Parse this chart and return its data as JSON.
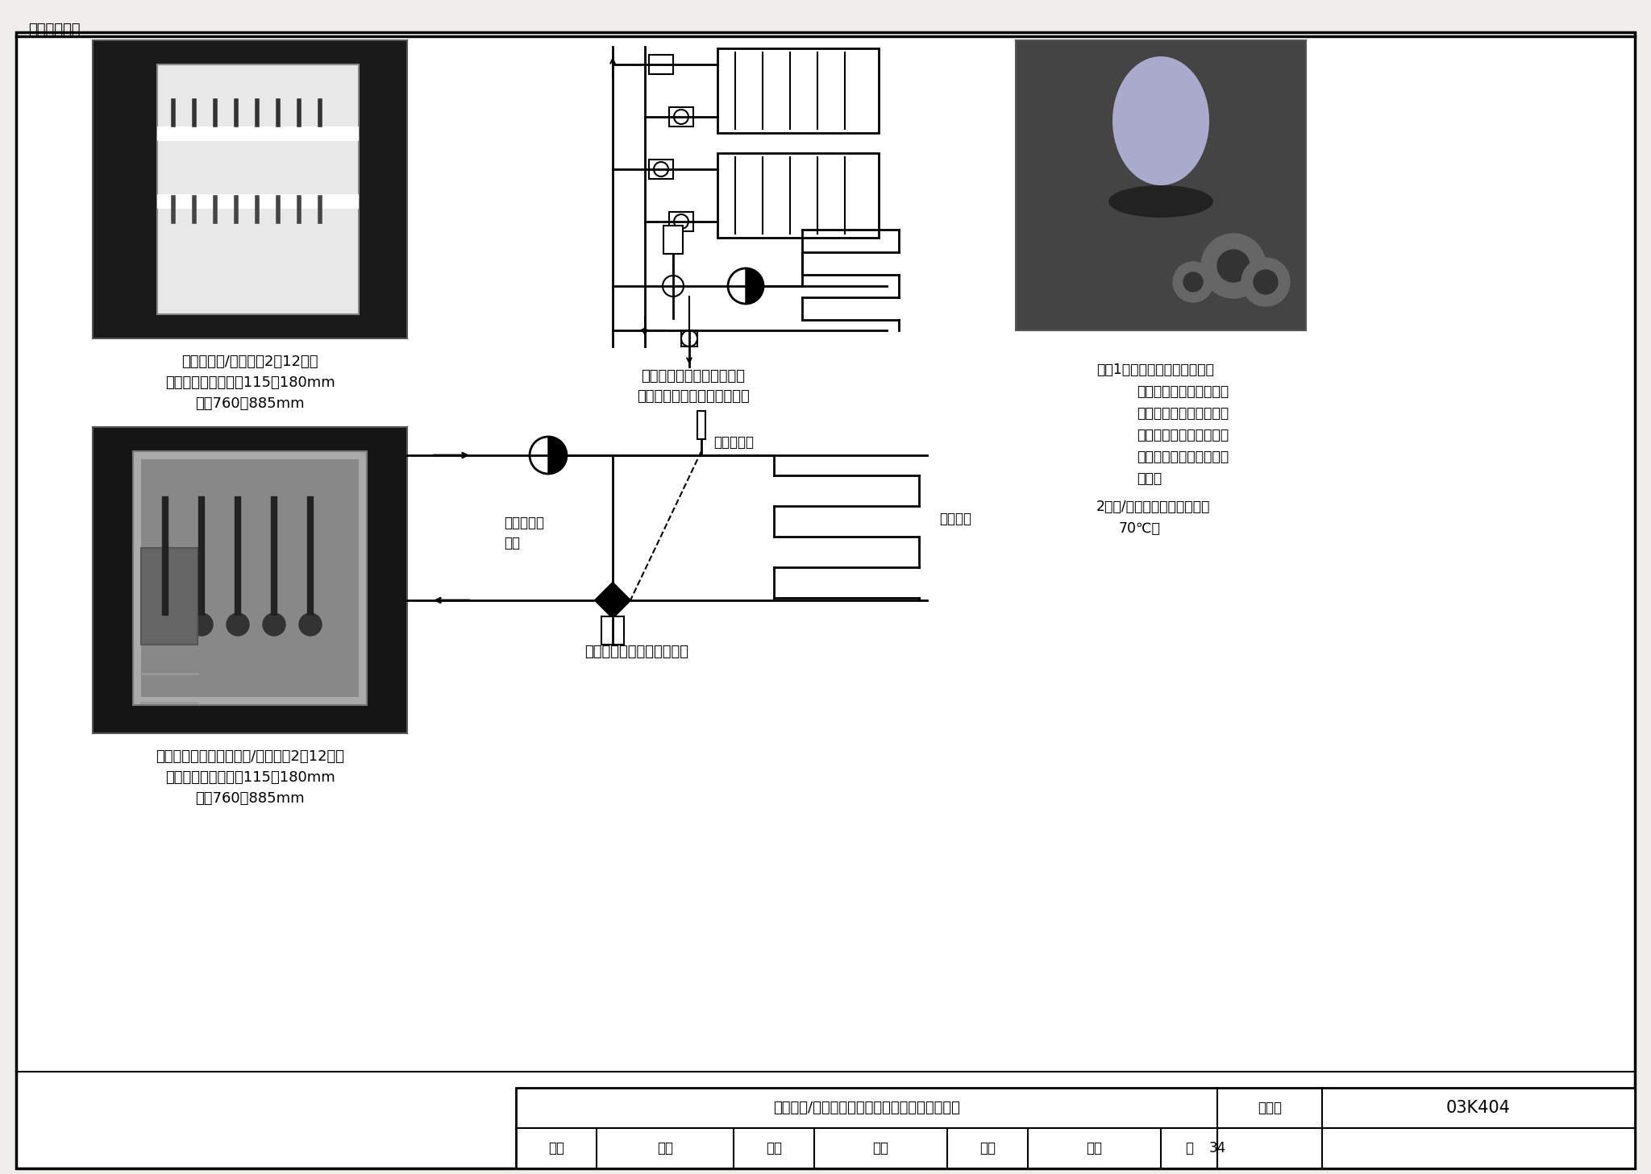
{
  "bg": "#f0eeea",
  "header_text": "相关技术资料",
  "caption1": [
    "全不锈钢分/集水器，2～12环路",
    "镀锌钢板箱壳，厚度115～180mm",
    "高度760～885mm"
  ],
  "caption2": [
    "带混水装置的全不锈钢分/集水器，2～12环路",
    "镀锌钢板箱壳，厚度115～180mm",
    "高度760～885mm"
  ],
  "diag1_title1": "二通阀控制供水温度原理图",
  "diag1_title2": "（二通阀和控制元件见右图）",
  "diag2_title": "三通阀控制供水温度原理图",
  "label_temp": "温度控制器",
  "label_valve_line1": "三通分流调",
  "label_valve_line2": "节阀",
  "label_floor": "地板采暖",
  "note1": "注：1．本页按欧文托普门系统",
  "note2": "（北京）有限公司提供资",
  "note3": "料编制。其他公司类似产",
  "note4": "品，参数、外形、尺寸等",
  "note5": "可能与本页不符，应注意",
  "note6": "核对。",
  "note7": "2．分/集水器最高工作温度：",
  "note8": "70℃。",
  "tbl_title": "不锈钢分/集水器（带箱）及供水温度调节示意图",
  "tbl_atlas_lbl": "图集号",
  "tbl_atlas_val": "03K404",
  "tbl_review": "审核",
  "tbl_review_sig": "王石",
  "tbl_check": "校对",
  "tbl_check_sig": "杜欣",
  "tbl_design": "设计",
  "tbl_design_sig": "王石",
  "tbl_page_lbl": "页",
  "tbl_page_val": "34"
}
